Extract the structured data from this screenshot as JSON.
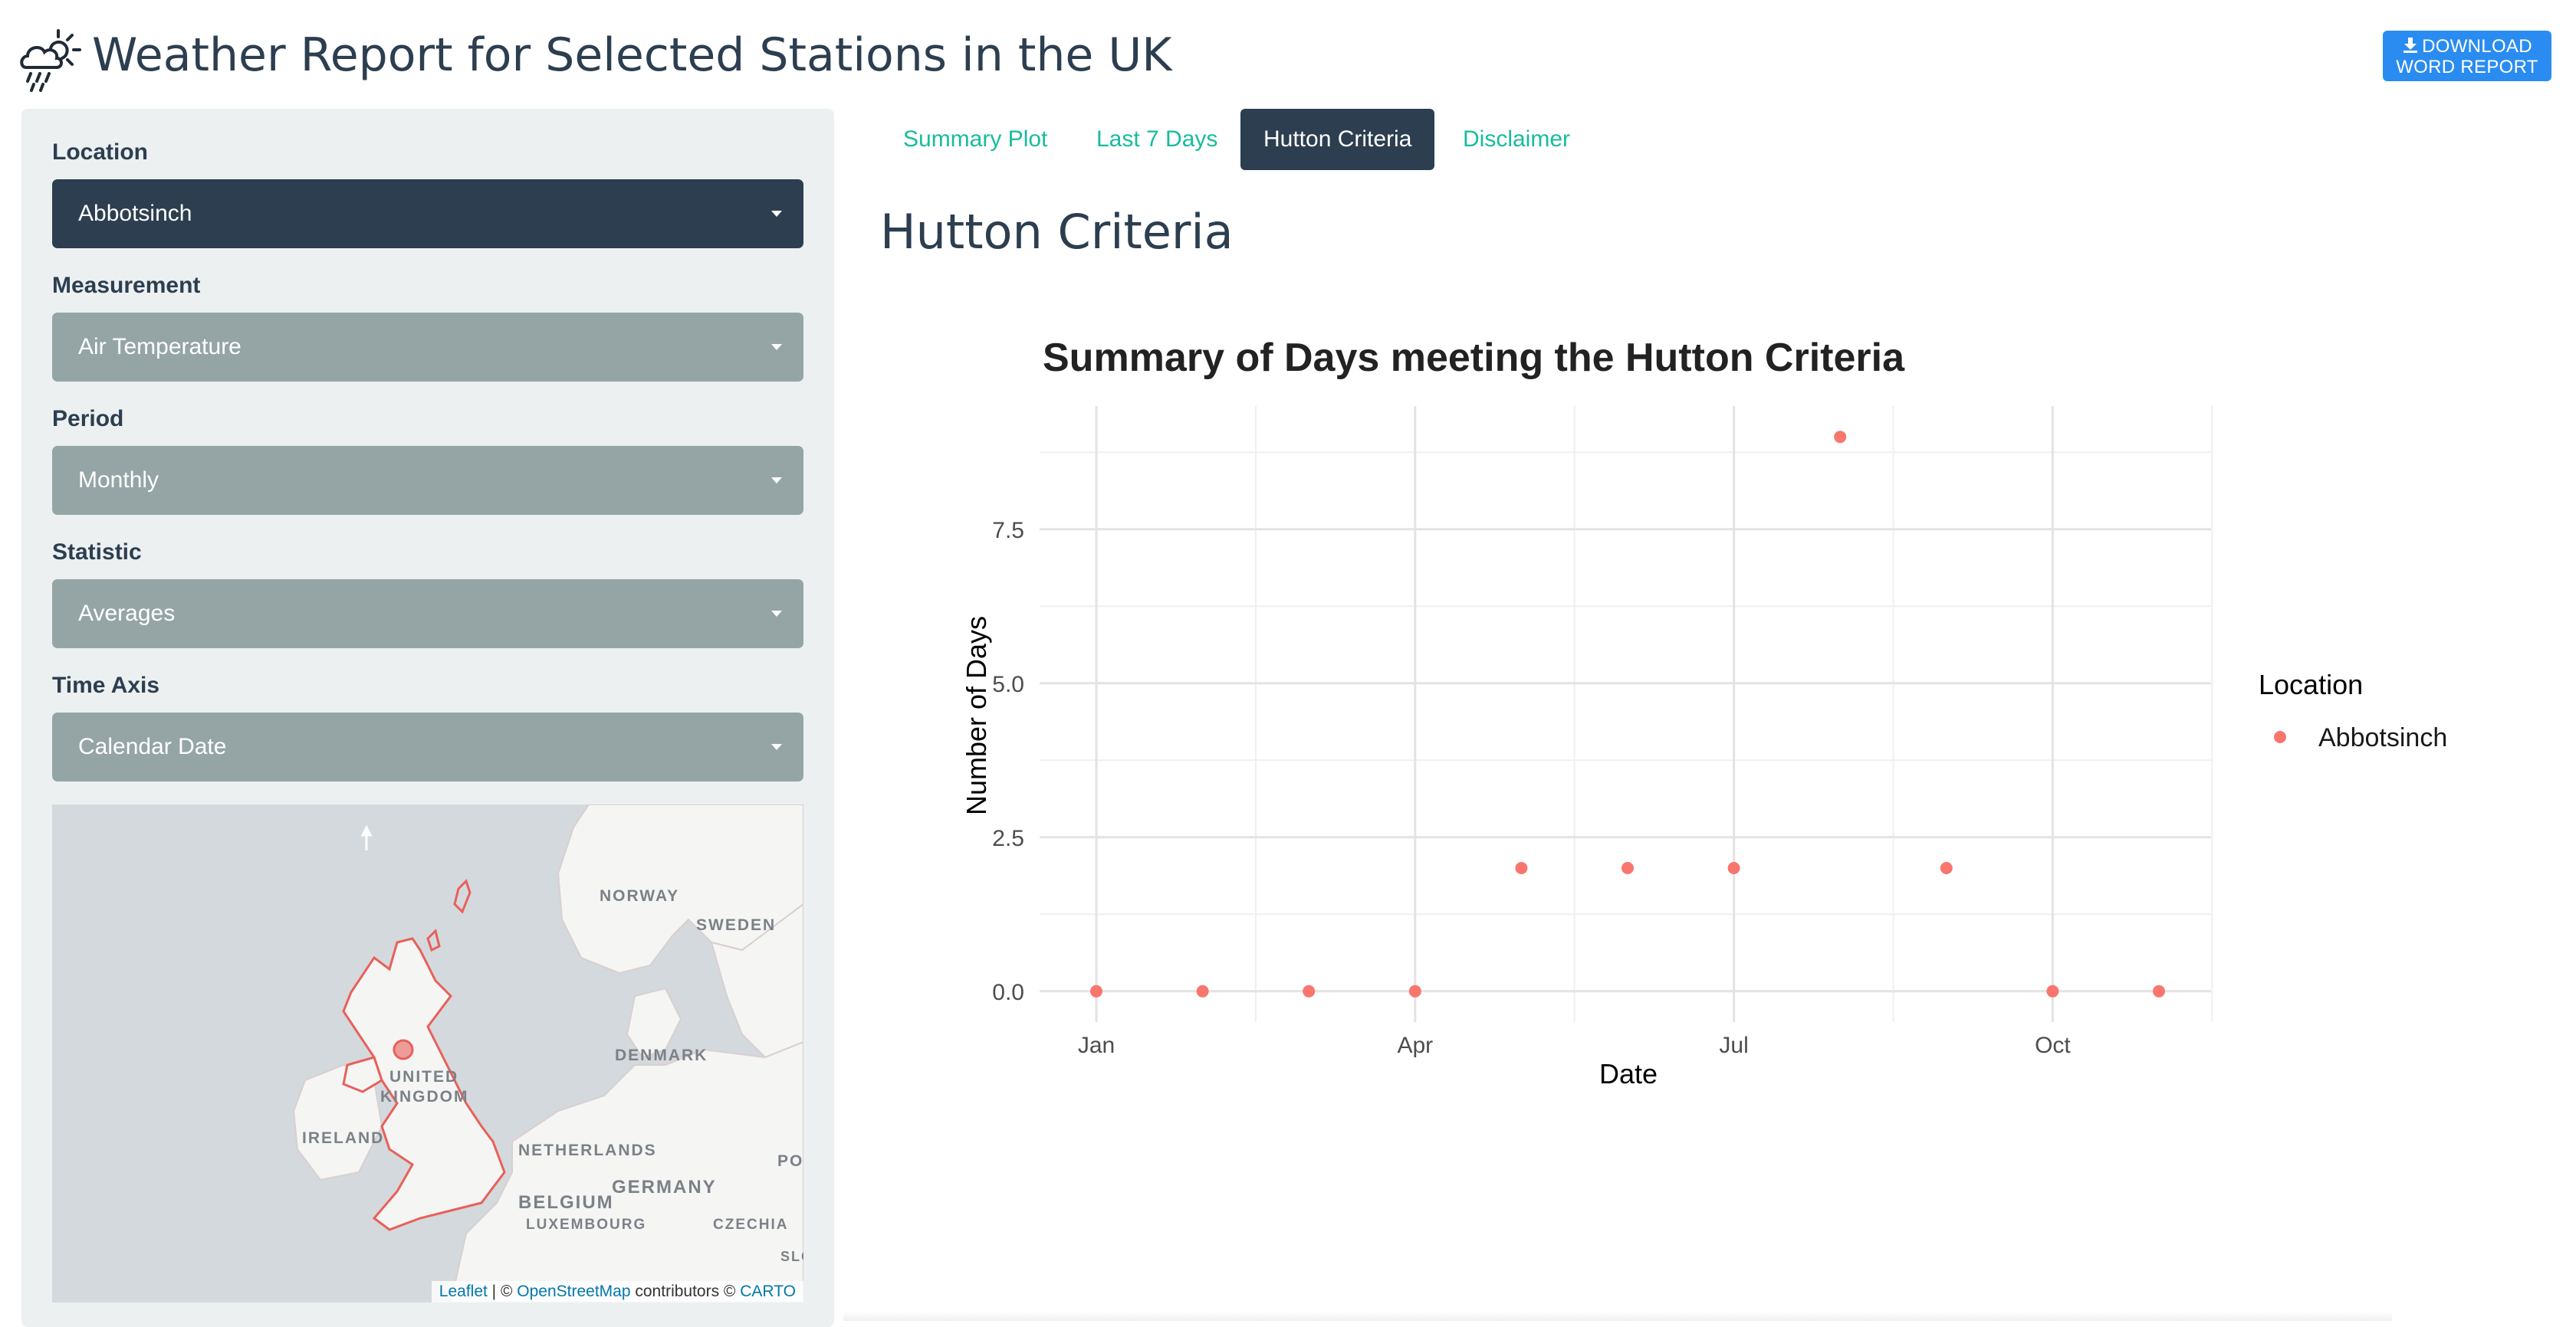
{
  "header": {
    "title": "Weather Report for Selected Stations in the UK",
    "icon": "weather-icon",
    "download_button": {
      "line1": "DOWNLOAD",
      "line2": "WORD REPORT",
      "icon": "download-icon"
    }
  },
  "sidebar": {
    "controls": [
      {
        "label": "Location",
        "value": "Abbotsinch"
      },
      {
        "label": "Measurement",
        "value": "Air Temperature"
      },
      {
        "label": "Period",
        "value": "Monthly"
      },
      {
        "label": "Statistic",
        "value": "Averages"
      },
      {
        "label": "Time Axis",
        "value": "Calendar Date"
      }
    ],
    "map": {
      "labels": {
        "norway": "NORWAY",
        "sweden": "SWEDEN",
        "denmark": "DENMARK",
        "united": "UNITED",
        "kingdom": "KINGDOM",
        "ireland": "IRELAND",
        "netherlands": "NETHERLANDS",
        "germany": "GERMANY",
        "belgium": "BELGIUM",
        "luxembourg": "LUXEMBOURG",
        "czechia": "CZECHIA",
        "po": "PO",
        "slo": "SLO"
      },
      "attribution": {
        "leaflet": "Leaflet",
        "sep1": " | © ",
        "osm": "OpenStreetMap",
        "contrib": " contributors © ",
        "carto": "CARTO"
      }
    }
  },
  "tabs": [
    {
      "label": "Summary Plot",
      "active": false
    },
    {
      "label": "Last 7 Days",
      "active": false
    },
    {
      "label": "Hutton Criteria",
      "active": true
    },
    {
      "label": "Disclaimer",
      "active": false
    }
  ],
  "main": {
    "section_title": "Hutton Criteria"
  },
  "colors": {
    "primary": "#2c3e50",
    "select_bg": "#95a5a6",
    "tab_link": "#18bc9c",
    "download_bg": "#2a8cf0",
    "point": "#f8766d",
    "map_outline": "#e8605a"
  },
  "chart_data": {
    "type": "scatter",
    "title": "Summary of Days meeting the Hutton Criteria",
    "xlabel": "Date",
    "ylabel": "Number of Days",
    "x_ticks": [
      "Jan",
      "Apr",
      "Jul",
      "Oct"
    ],
    "y_ticks": [
      "0.0",
      "2.5",
      "5.0",
      "7.5"
    ],
    "ylim": [
      -0.5,
      9.5
    ],
    "legend": {
      "title": "Location",
      "position": "right"
    },
    "series": [
      {
        "name": "Abbotsinch",
        "color": "#f8766d",
        "x": [
          "Jan",
          "Feb",
          "Mar",
          "Apr",
          "May",
          "Jun",
          "Jul",
          "Aug",
          "Sep",
          "Oct",
          "Nov"
        ],
        "values": [
          0,
          0,
          0,
          0,
          2,
          2,
          2,
          9,
          2,
          0,
          0
        ]
      }
    ],
    "grid": true
  }
}
